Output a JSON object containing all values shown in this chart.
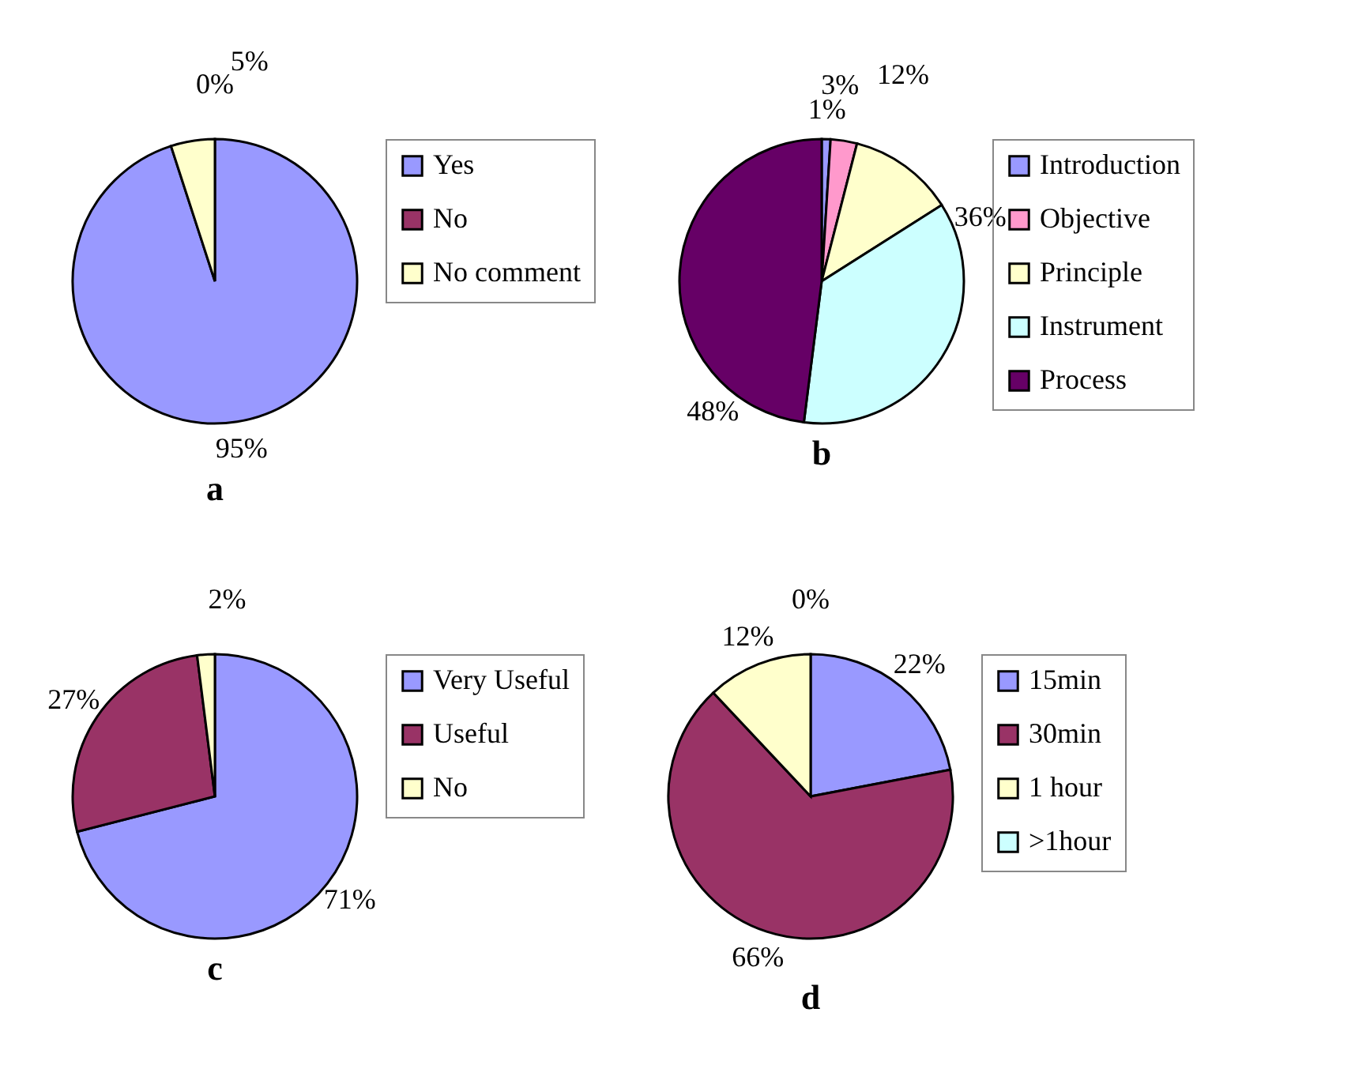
{
  "chart_data": [
    {
      "type": "pie",
      "title": "a",
      "categories": [
        "Yes",
        "No",
        "No comment"
      ],
      "values": [
        95,
        0,
        5
      ],
      "colors": [
        "#9999ff",
        "#993366",
        "#ffffcc"
      ],
      "value_labels": [
        "95%",
        "0%",
        "5%"
      ],
      "legend": "right"
    },
    {
      "type": "pie",
      "title": "b",
      "categories": [
        "Introduction",
        "Objective",
        "Principle",
        "Instrument",
        "Process"
      ],
      "values": [
        1,
        3,
        12,
        36,
        48
      ],
      "colors": [
        "#9999ff",
        "#ff99cc",
        "#ffffcc",
        "#ccffff",
        "#660066"
      ],
      "value_labels": [
        "1%",
        "3%",
        "12%",
        "36%",
        "48%"
      ],
      "legend": "right"
    },
    {
      "type": "pie",
      "title": "c",
      "categories": [
        "Very Useful",
        "Useful",
        "No"
      ],
      "values": [
        71,
        27,
        2
      ],
      "colors": [
        "#9999ff",
        "#993366",
        "#ffffcc"
      ],
      "value_labels": [
        "71%",
        "27%",
        "2%"
      ],
      "legend": "right"
    },
    {
      "type": "pie",
      "title": "d",
      "categories": [
        "15min",
        "30min",
        "1 hour",
        ">1hour"
      ],
      "values": [
        22,
        66,
        12,
        0
      ],
      "colors": [
        "#9999ff",
        "#993366",
        "#ffffcc",
        "#ccffff"
      ],
      "value_labels": [
        "22%",
        "66%",
        "12%",
        "0%"
      ],
      "legend": "right"
    }
  ]
}
